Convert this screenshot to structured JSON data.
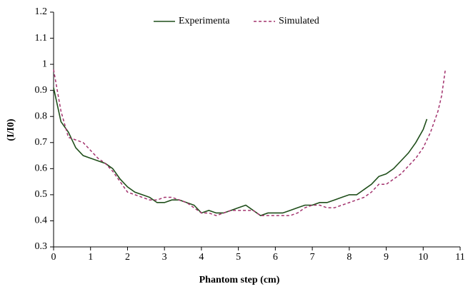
{
  "chart_data": {
    "type": "line",
    "x_label": "Phantom step (cm)",
    "y_label": "(I/I0)",
    "x": [
      0,
      0.2,
      0.4,
      0.6,
      0.8,
      1.0,
      1.2,
      1.4,
      1.6,
      1.8,
      2.0,
      2.2,
      2.4,
      2.6,
      2.8,
      3.0,
      3.2,
      3.4,
      3.6,
      3.8,
      4.0,
      4.2,
      4.4,
      4.6,
      4.8,
      5.0,
      5.2,
      5.4,
      5.6,
      5.8,
      6.0,
      6.2,
      6.4,
      6.6,
      6.8,
      7.0,
      7.2,
      7.4,
      7.6,
      7.8,
      8.0,
      8.2,
      8.4,
      8.6,
      8.8,
      9.0,
      9.2,
      9.4,
      9.6,
      9.8,
      10.0,
      10.1,
      10.2,
      10.4,
      10.5,
      10.6
    ],
    "series": [
      {
        "name": "Experimenta",
        "color": "#1f4e1a",
        "dashed": false,
        "values": [
          0.91,
          0.78,
          0.74,
          0.68,
          0.65,
          0.64,
          0.63,
          0.62,
          0.6,
          0.56,
          0.53,
          0.51,
          0.5,
          0.49,
          0.47,
          0.47,
          0.48,
          0.48,
          0.47,
          0.46,
          0.43,
          0.44,
          0.43,
          0.43,
          0.44,
          0.45,
          0.46,
          0.44,
          0.42,
          0.43,
          0.43,
          0.43,
          0.44,
          0.45,
          0.46,
          0.46,
          0.47,
          0.47,
          0.48,
          0.49,
          0.5,
          0.5,
          0.52,
          0.54,
          0.57,
          0.58,
          0.6,
          0.63,
          0.66,
          0.7,
          0.75,
          0.79,
          null,
          null,
          null,
          null
        ]
      },
      {
        "name": "Simulated",
        "color": "#a3336e",
        "dashed": true,
        "values": [
          0.98,
          0.82,
          0.72,
          0.71,
          0.7,
          0.67,
          0.64,
          0.62,
          0.59,
          0.55,
          0.51,
          0.5,
          0.49,
          0.48,
          0.48,
          0.49,
          0.49,
          0.48,
          0.47,
          0.45,
          0.43,
          0.43,
          0.42,
          0.43,
          0.44,
          0.44,
          0.44,
          0.44,
          0.42,
          0.42,
          0.42,
          0.42,
          0.42,
          0.43,
          0.45,
          0.46,
          0.46,
          0.45,
          0.45,
          0.46,
          0.47,
          0.48,
          0.49,
          0.51,
          0.54,
          0.54,
          0.56,
          0.58,
          0.61,
          0.64,
          0.68,
          0.71,
          0.74,
          0.82,
          0.88,
          0.98
        ]
      }
    ],
    "xlim": [
      0,
      11
    ],
    "xticks": [
      0,
      1,
      2,
      3,
      4,
      5,
      6,
      7,
      8,
      9,
      10,
      11
    ],
    "ylim": [
      0.3,
      1.2
    ],
    "yticks": [
      0.3,
      0.4,
      0.5,
      0.6,
      0.7,
      0.8,
      0.9,
      1,
      1.1,
      1.2
    ],
    "grid": false,
    "legend": "top"
  }
}
